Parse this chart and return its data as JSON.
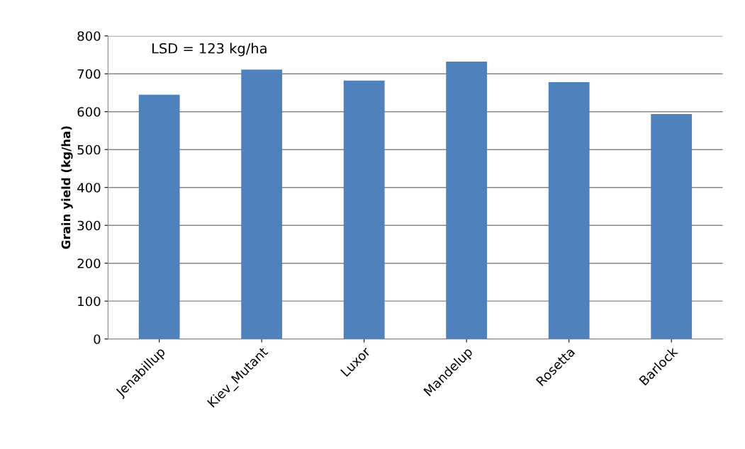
{
  "chart_data": {
    "type": "bar",
    "ylabel": "Grain yield (kg/ha)",
    "categories": [
      "Jenabillup",
      "Kiev_Mutant",
      "Luxor",
      "Mandelup",
      "Rosetta",
      "Barlock"
    ],
    "values": [
      645,
      711,
      682,
      732,
      678,
      594
    ],
    "color": "#4f81bd",
    "ylim": [
      0,
      800
    ],
    "yticks": [
      0,
      100,
      200,
      300,
      400,
      500,
      600,
      700,
      800
    ],
    "grid": "y",
    "annotations": [
      "LSD = 123 kg/ha"
    ]
  }
}
